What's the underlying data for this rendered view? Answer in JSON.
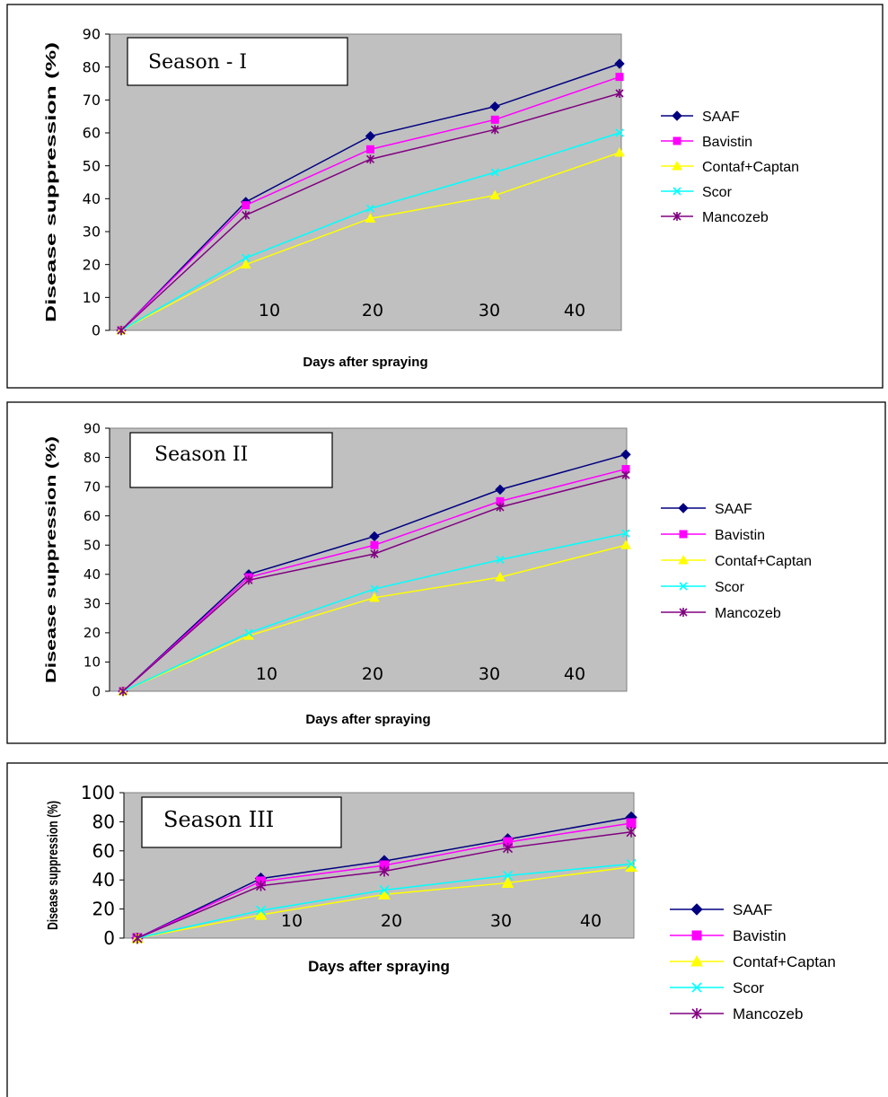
{
  "chart_data": [
    {
      "type": "line",
      "title": "Season - I",
      "xlabel": "Days after spraying",
      "ylabel": "Disease suppression (%)",
      "ylim": [
        0,
        90
      ],
      "yticks": [
        "0",
        "10",
        "20",
        "30",
        "40",
        "50",
        "60",
        "70",
        "80",
        "90"
      ],
      "xticks": [
        "10",
        "20",
        "30",
        "40"
      ],
      "x": [
        0,
        10,
        20,
        30,
        40
      ],
      "grid": false,
      "legend_position": "right",
      "series": [
        {
          "name": "SAAF",
          "color": "#000080",
          "marker": "diamond",
          "values": [
            0,
            39,
            59,
            68,
            81
          ]
        },
        {
          "name": "Bavistin",
          "color": "#ff00ff",
          "marker": "square",
          "values": [
            0,
            38,
            55,
            64,
            77
          ]
        },
        {
          "name": "Contaf+Captan",
          "color": "#ffff00",
          "marker": "triangle",
          "values": [
            0,
            20,
            34,
            41,
            54
          ]
        },
        {
          "name": "Scor",
          "color": "#00ffff",
          "marker": "x",
          "values": [
            0,
            22,
            37,
            48,
            60
          ]
        },
        {
          "name": "Mancozeb",
          "color": "#800080",
          "marker": "star",
          "values": [
            0,
            35,
            52,
            61,
            72
          ]
        }
      ]
    },
    {
      "type": "line",
      "title": "Season II",
      "xlabel": "Days after spraying",
      "ylabel": "Disease suppression (%)",
      "ylim": [
        0,
        90
      ],
      "yticks": [
        "0",
        "10",
        "20",
        "30",
        "40",
        "50",
        "60",
        "70",
        "80",
        "90"
      ],
      "xticks": [
        "10",
        "20",
        "30",
        "40"
      ],
      "x": [
        0,
        10,
        20,
        30,
        40
      ],
      "grid": false,
      "legend_position": "right",
      "series": [
        {
          "name": "SAAF",
          "color": "#000080",
          "marker": "diamond",
          "values": [
            0,
            40,
            53,
            69,
            81
          ]
        },
        {
          "name": "Bavistin",
          "color": "#ff00ff",
          "marker": "square",
          "values": [
            0,
            39,
            50,
            65,
            76
          ]
        },
        {
          "name": "Contaf+Captan",
          "color": "#ffff00",
          "marker": "triangle",
          "values": [
            0,
            19,
            32,
            39,
            50
          ]
        },
        {
          "name": "Scor",
          "color": "#00ffff",
          "marker": "x",
          "values": [
            0,
            20,
            35,
            45,
            54
          ]
        },
        {
          "name": "Mancozeb",
          "color": "#800080",
          "marker": "star",
          "values": [
            0,
            38,
            47,
            63,
            74
          ]
        }
      ]
    },
    {
      "type": "line",
      "title": "Season III",
      "xlabel": "Days after spraying",
      "ylabel": "Disease suppression (%)",
      "ylim": [
        0,
        100
      ],
      "yticks": [
        "0",
        "20",
        "40",
        "60",
        "80",
        "100"
      ],
      "xticks": [
        "10",
        "20",
        "30",
        "40"
      ],
      "x": [
        0,
        10,
        20,
        30,
        40
      ],
      "grid": false,
      "legend_position": "right",
      "series": [
        {
          "name": "SAAF",
          "color": "#000080",
          "marker": "diamond",
          "values": [
            0,
            41,
            53,
            68,
            83
          ]
        },
        {
          "name": "Bavistin",
          "color": "#ff00ff",
          "marker": "square",
          "values": [
            0,
            39,
            50,
            66,
            79
          ]
        },
        {
          "name": "Contaf+Captan",
          "color": "#ffff00",
          "marker": "triangle",
          "values": [
            0,
            16,
            30,
            38,
            49
          ]
        },
        {
          "name": "Scor",
          "color": "#00ffff",
          "marker": "x",
          "values": [
            0,
            19,
            33,
            43,
            51
          ]
        },
        {
          "name": "Mancozeb",
          "color": "#800080",
          "marker": "star",
          "values": [
            0,
            36,
            46,
            62,
            73
          ]
        }
      ]
    }
  ]
}
